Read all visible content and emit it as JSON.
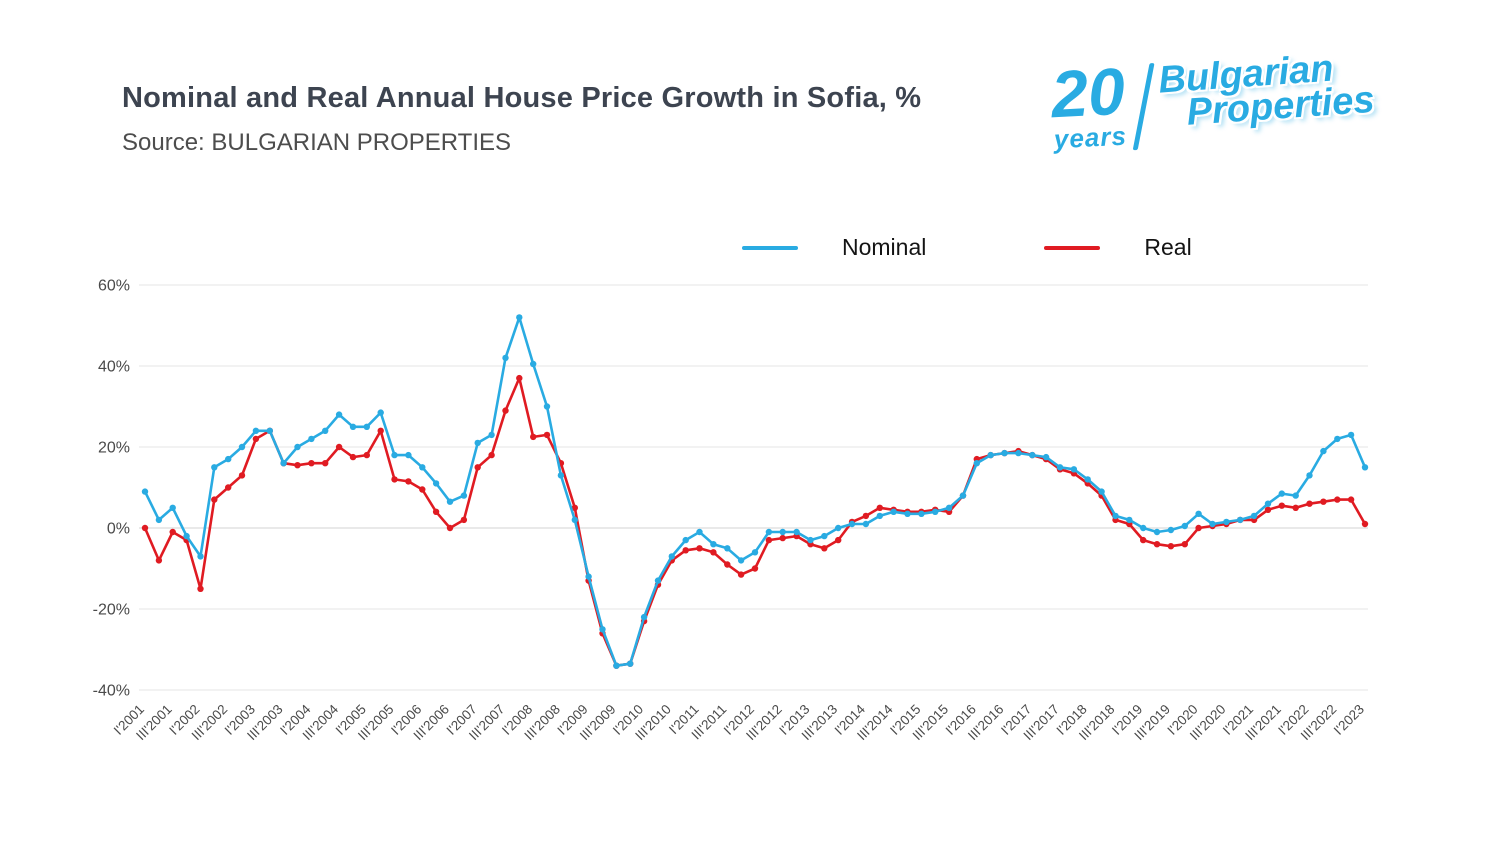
{
  "header": {
    "title": "Nominal and Real Annual House Price Growth in Sofia, %",
    "source": "Source: BULGARIAN PROPERTIES"
  },
  "logo": {
    "number": "20",
    "years": "years",
    "brand_line1": "Bulgarian",
    "brand_line2": "Properties",
    "color": "#29abe2"
  },
  "legend": {
    "items": [
      {
        "label": "Nominal",
        "color": "#29abe2"
      },
      {
        "label": "Real",
        "color": "#e01b22"
      }
    ]
  },
  "chart_data": {
    "type": "line",
    "title": "Nominal and Real Annual House Price Growth in Sofia, %",
    "grid": true,
    "legend_position": "top",
    "ylim": [
      -40,
      60
    ],
    "yticks": [
      60,
      40,
      20,
      0,
      -20,
      -40
    ],
    "ytick_labels": [
      "60%",
      "40%",
      "20%",
      "0%",
      "-20%",
      "-40%"
    ],
    "x_tick_every": 2,
    "x": [
      "I'2001",
      "II'2001",
      "III'2001",
      "IV'2001",
      "I'2002",
      "II'2002",
      "III'2002",
      "IV'2002",
      "I'2003",
      "II'2003",
      "III'2003",
      "IV'2003",
      "I'2004",
      "II'2004",
      "III'2004",
      "IV'2004",
      "I'2005",
      "II'2005",
      "III'2005",
      "IV'2005",
      "I'2006",
      "II'2006",
      "III'2006",
      "IV'2006",
      "I'2007",
      "II'2007",
      "III'2007",
      "IV'2007",
      "I'2008",
      "II'2008",
      "III'2008",
      "IV'2008",
      "I'2009",
      "II'2009",
      "III'2009",
      "IV'2009",
      "I'2010",
      "II'2010",
      "III'2010",
      "IV'2010",
      "I'2011",
      "II'2011",
      "III'2011",
      "IV'2011",
      "I'2012",
      "II'2012",
      "III'2012",
      "IV'2012",
      "I'2013",
      "II'2013",
      "III'2013",
      "IV'2013",
      "I'2014",
      "II'2014",
      "III'2014",
      "IV'2014",
      "I'2015",
      "II'2015",
      "III'2015",
      "IV'2015",
      "I'2016",
      "II'2016",
      "III'2016",
      "IV'2016",
      "I'2017",
      "II'2017",
      "III'2017",
      "IV'2017",
      "I'2018",
      "II'2018",
      "III'2018",
      "IV'2018",
      "I'2019",
      "II'2019",
      "III'2019",
      "IV'2019",
      "I'2020",
      "II'2020",
      "III'2020",
      "IV'2020",
      "I'2021",
      "II'2021",
      "III'2021",
      "IV'2021",
      "I'2022",
      "II'2022",
      "III'2022",
      "IV'2022",
      "I'2023"
    ],
    "series": [
      {
        "name": "Nominal",
        "color": "#29abe2",
        "values": [
          9,
          2,
          5,
          -2,
          -7,
          15,
          17,
          20,
          24,
          24,
          16,
          20,
          22,
          24,
          28,
          25,
          25,
          28.5,
          18,
          18,
          15,
          11,
          6.5,
          8,
          21,
          23,
          42,
          52,
          40.5,
          30,
          13,
          2,
          -12,
          -25,
          -34,
          -33.5,
          -22,
          -13,
          -7,
          -3,
          -1,
          -4,
          -5,
          -8,
          -6,
          -1,
          -1,
          -1,
          -3,
          -2,
          0,
          1,
          1,
          3,
          4,
          3.5,
          3.5,
          4,
          5,
          8,
          16,
          18,
          18.5,
          18.5,
          18,
          17.5,
          15,
          14.5,
          12,
          9,
          3,
          2,
          0,
          -1,
          -0.5,
          0.5,
          3.5,
          1,
          1.5,
          2,
          3,
          6,
          8.5,
          8,
          13,
          19,
          22,
          23,
          15
        ]
      },
      {
        "name": "Real",
        "color": "#e01b22",
        "values": [
          0,
          -8,
          -1,
          -3,
          -15,
          7,
          10,
          13,
          22,
          24,
          16,
          15.5,
          16,
          16,
          20,
          17.5,
          18,
          24,
          12,
          11.5,
          9.5,
          4,
          0,
          2,
          15,
          18,
          29,
          37,
          22.5,
          23,
          16,
          5,
          -13,
          -26,
          -34,
          -33.5,
          -23,
          -14,
          -8,
          -5.5,
          -5,
          -6,
          -9,
          -11.5,
          -10,
          -3,
          -2.5,
          -2,
          -4,
          -5,
          -3,
          1.5,
          3,
          5,
          4.5,
          4,
          4,
          4.5,
          4,
          8,
          17,
          18,
          18.5,
          19,
          18,
          17,
          14.5,
          13.5,
          11,
          8,
          2,
          1,
          -3,
          -4,
          -4.5,
          -4,
          0,
          0.5,
          1,
          2,
          2,
          4.5,
          5.5,
          5,
          6,
          6.5,
          7,
          7,
          1
        ]
      }
    ]
  }
}
